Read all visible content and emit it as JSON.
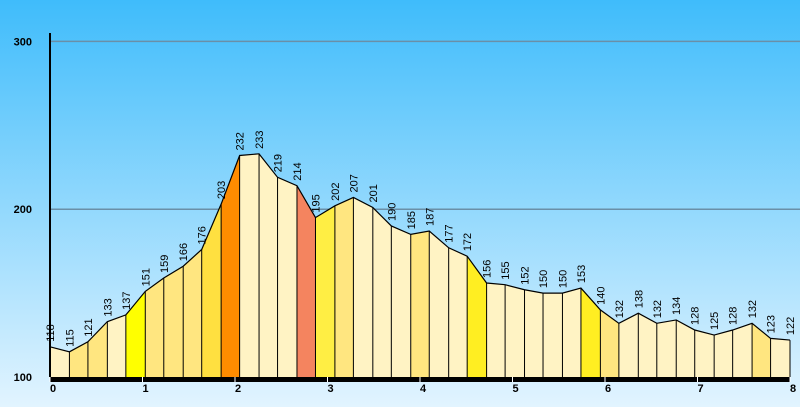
{
  "chart_data": {
    "type": "elevation-profile",
    "x": [
      0,
      0.21,
      0.41,
      0.62,
      0.82,
      1.03,
      1.23,
      1.44,
      1.64,
      1.85,
      2.05,
      2.26,
      2.46,
      2.67,
      2.87,
      3.08,
      3.28,
      3.49,
      3.69,
      3.9,
      4.1,
      4.31,
      4.51,
      4.72,
      4.92,
      5.13,
      5.33,
      5.54,
      5.74,
      5.95,
      6.15,
      6.36,
      6.56,
      6.77,
      6.97,
      7.18,
      7.38,
      7.59,
      7.79,
      8.0
    ],
    "values": [
      118,
      115,
      121,
      133,
      137,
      151,
      159,
      166,
      176,
      203,
      232,
      233,
      219,
      214,
      195,
      202,
      207,
      201,
      190,
      185,
      187,
      177,
      172,
      156,
      155,
      152,
      150,
      150,
      153,
      140,
      132,
      138,
      132,
      134,
      128,
      125,
      128,
      132,
      123,
      122
    ],
    "segment_colors": [
      "#fff3c4",
      "#ffe680",
      "#ffe680",
      "#fff3c4",
      "#ffff00",
      "#ffe680",
      "#ffe680",
      "#ffe680",
      "#ffe040",
      "#ff8c00",
      "#fff3c4",
      "#fff3c4",
      "#fff3c4",
      "#f4845f",
      "#ffee44",
      "#ffe680",
      "#fff3c4",
      "#fff3c4",
      "#fff3c4",
      "#ffe680",
      "#fff3c4",
      "#fff3c4",
      "#ffee22",
      "#fff3c4",
      "#fff3c4",
      "#fff3c4",
      "#fff3c4",
      "#fff3c4",
      "#ffee22",
      "#ffe680",
      "#fff3c4",
      "#fff3c4",
      "#fff3c4",
      "#fff3c4",
      "#fff3c4",
      "#fff3c4",
      "#fff3c4",
      "#ffe680",
      "#fff3c4"
    ],
    "xlim": [
      0,
      8
    ],
    "xticks": [
      0,
      1,
      2,
      3,
      4,
      5,
      6,
      7,
      8
    ],
    "ylim": [
      100,
      305
    ],
    "yticks": [
      100,
      200,
      300
    ],
    "grid": true
  }
}
